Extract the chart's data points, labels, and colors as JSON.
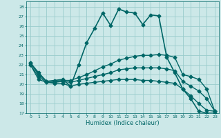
{
  "xlabel": "Humidex (Indice chaleur)",
  "xlim": [
    -0.5,
    23.5
  ],
  "ylim": [
    17,
    28.6
  ],
  "yticks": [
    17,
    18,
    19,
    20,
    21,
    22,
    23,
    24,
    25,
    26,
    27,
    28
  ],
  "xticks": [
    0,
    1,
    2,
    3,
    4,
    5,
    6,
    7,
    8,
    9,
    10,
    11,
    12,
    13,
    14,
    15,
    16,
    17,
    18,
    19,
    20,
    21,
    22,
    23
  ],
  "bg_color": "#cce8e8",
  "grid_color": "#99cccc",
  "line_color": "#006666",
  "lines": [
    {
      "x": [
        0,
        1,
        2,
        3,
        4,
        5,
        6,
        7,
        8,
        9,
        10,
        11,
        12,
        13,
        14,
        15,
        16,
        17,
        18,
        19,
        20,
        21,
        22,
        23
      ],
      "y": [
        22.2,
        21.2,
        20.3,
        20.4,
        20.5,
        19.8,
        22.0,
        24.3,
        25.8,
        27.4,
        26.1,
        27.8,
        27.5,
        27.4,
        26.2,
        27.2,
        27.1,
        22.8,
        21.2,
        19.5,
        18.5,
        17.2,
        17.0,
        17.0
      ],
      "marker": "D",
      "markersize": 2.5,
      "linewidth": 1.2
    },
    {
      "x": [
        0,
        1,
        2,
        3,
        4,
        5,
        6,
        7,
        8,
        9,
        10,
        11,
        12,
        13,
        14,
        15,
        16,
        17,
        18,
        19,
        20,
        21,
        22,
        23
      ],
      "y": [
        22.2,
        21.0,
        20.3,
        20.3,
        20.4,
        20.4,
        20.7,
        21.0,
        21.4,
        21.8,
        22.1,
        22.5,
        22.7,
        22.9,
        23.0,
        23.0,
        23.1,
        23.0,
        22.8,
        21.0,
        20.8,
        20.5,
        19.5,
        17.2
      ],
      "marker": "D",
      "markersize": 2.5,
      "linewidth": 1.0
    },
    {
      "x": [
        0,
        1,
        2,
        3,
        4,
        5,
        6,
        7,
        8,
        9,
        10,
        11,
        12,
        13,
        14,
        15,
        16,
        17,
        18,
        19,
        20,
        21,
        22,
        23
      ],
      "y": [
        22.0,
        20.8,
        20.2,
        20.2,
        20.3,
        20.2,
        20.4,
        20.6,
        20.8,
        21.0,
        21.2,
        21.5,
        21.6,
        21.7,
        21.7,
        21.7,
        21.7,
        21.6,
        21.4,
        20.3,
        19.8,
        19.3,
        18.5,
        17.2
      ],
      "marker": "D",
      "markersize": 2.5,
      "linewidth": 1.0
    },
    {
      "x": [
        0,
        1,
        2,
        3,
        4,
        5,
        6,
        7,
        8,
        9,
        10,
        11,
        12,
        13,
        14,
        15,
        16,
        17,
        18,
        19,
        20,
        21,
        22,
        23
      ],
      "y": [
        22.0,
        20.5,
        20.2,
        20.1,
        20.1,
        19.8,
        20.0,
        20.1,
        20.2,
        20.3,
        20.4,
        20.5,
        20.5,
        20.5,
        20.4,
        20.4,
        20.3,
        20.2,
        20.1,
        19.5,
        18.8,
        18.0,
        17.3,
        17.2
      ],
      "marker": "D",
      "markersize": 2.5,
      "linewidth": 1.0
    }
  ]
}
